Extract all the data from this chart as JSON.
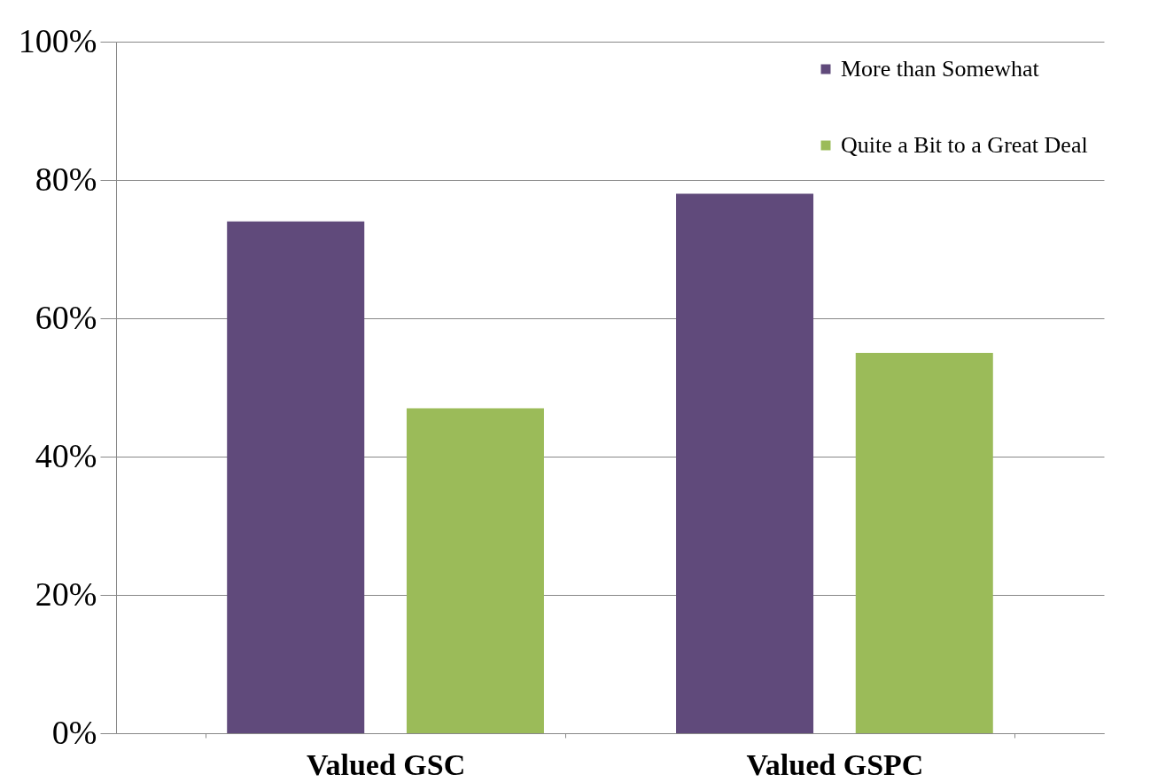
{
  "chart_data": {
    "type": "bar",
    "categories": [
      "Valued GSC",
      "Valued GSPC"
    ],
    "series": [
      {
        "name": "More than Somewhat",
        "color": "#604a7b",
        "values": [
          74,
          78
        ]
      },
      {
        "name": "Quite a Bit to a Great Deal",
        "color": "#9bbb59",
        "values": [
          47,
          55
        ]
      }
    ],
    "ylim": [
      0,
      100
    ],
    "yticks": [
      {
        "value": 0,
        "label": "0%"
      },
      {
        "value": 20,
        "label": "20%"
      },
      {
        "value": 40,
        "label": "40%"
      },
      {
        "value": 60,
        "label": "60%"
      },
      {
        "value": 80,
        "label": "80%"
      },
      {
        "value": 100,
        "label": "100%"
      }
    ],
    "grid": "y",
    "legend": "top right"
  }
}
